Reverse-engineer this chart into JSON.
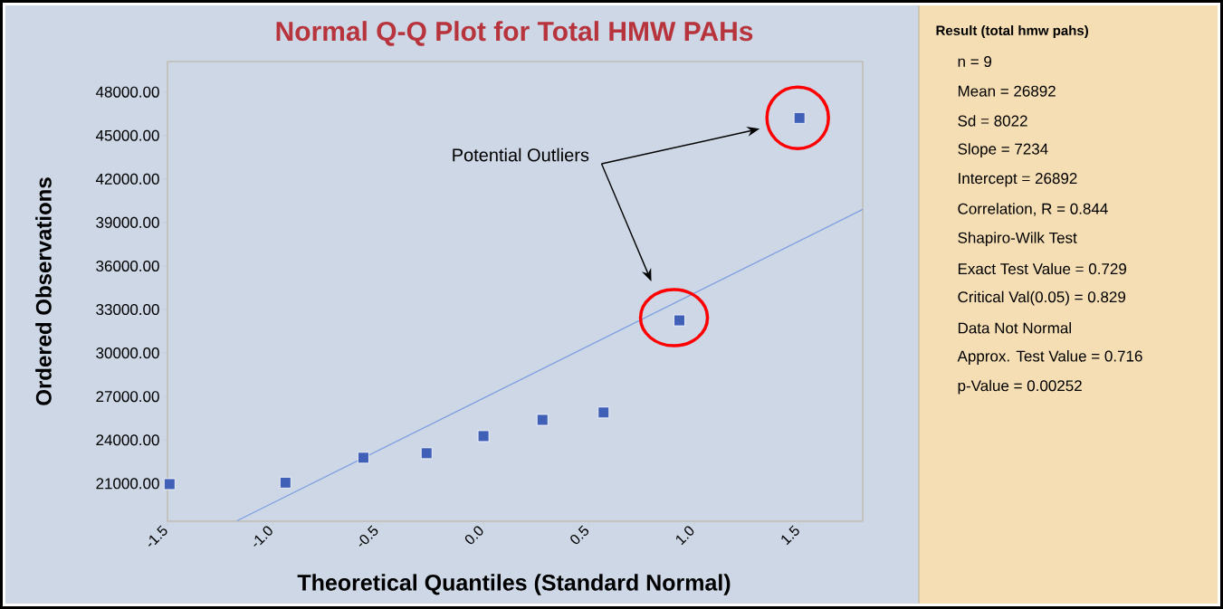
{
  "chart_data": {
    "type": "scatter",
    "title": "Normal Q-Q Plot for Total HMW PAHs",
    "xlabel": "Theoretical Quantiles (Standard Normal)",
    "ylabel": "Ordered Observations",
    "xlim": [
      -1.5,
      1.8
    ],
    "ylim": [
      18400,
      50100
    ],
    "xticks": [
      {
        "value": -1.5,
        "label": "-1.5"
      },
      {
        "value": -1.0,
        "label": "-1.0"
      },
      {
        "value": -0.5,
        "label": "-0.5"
      },
      {
        "value": 0.0,
        "label": "0.0"
      },
      {
        "value": 0.5,
        "label": "0.5"
      },
      {
        "value": 1.0,
        "label": "1.0"
      },
      {
        "value": 1.5,
        "label": "1.5"
      }
    ],
    "yticks": [
      {
        "value": 21000,
        "label": "21000.00"
      },
      {
        "value": 24000,
        "label": "24000.00"
      },
      {
        "value": 27000,
        "label": "27000.00"
      },
      {
        "value": 30000,
        "label": "30000.00"
      },
      {
        "value": 33000,
        "label": "33000.00"
      },
      {
        "value": 36000,
        "label": "36000.00"
      },
      {
        "value": 39000,
        "label": "39000.00"
      },
      {
        "value": 42000,
        "label": "42000.00"
      },
      {
        "value": 45000,
        "label": "45000.00"
      },
      {
        "value": 48000,
        "label": "48000.00"
      }
    ],
    "marker": "square",
    "series": [
      {
        "color": "#4060b8",
        "x": [
          -1.49,
          -0.94,
          -0.57,
          -0.27,
          0.0,
          0.28,
          0.57,
          0.93,
          1.5
        ],
        "values": [
          20960,
          21060,
          22780,
          23090,
          24270,
          25390,
          25900,
          32250,
          46210
        ]
      },
      {
        "type": "line",
        "marker": "none",
        "color": "#7f9fe0",
        "x": [
          -1.17,
          1.8
        ],
        "values": [
          18430,
          39900
        ]
      }
    ],
    "annotations": [
      "Potential Outliers",
      "Result (total hmw pahs)",
      "n = 9",
      "Mean = 26892",
      "Sd = 8022",
      "Slope = 7234",
      "Intercept = 26892",
      "Correlation, R = 0.844",
      "Shapiro-Wilk Test",
      "Exact Test Value = 0.729",
      "Critical Val(0.05) = 0.829",
      "Data Not Normal",
      "Approx. Test Value = 0.716",
      "p-Value = 0.00252"
    ]
  }
}
